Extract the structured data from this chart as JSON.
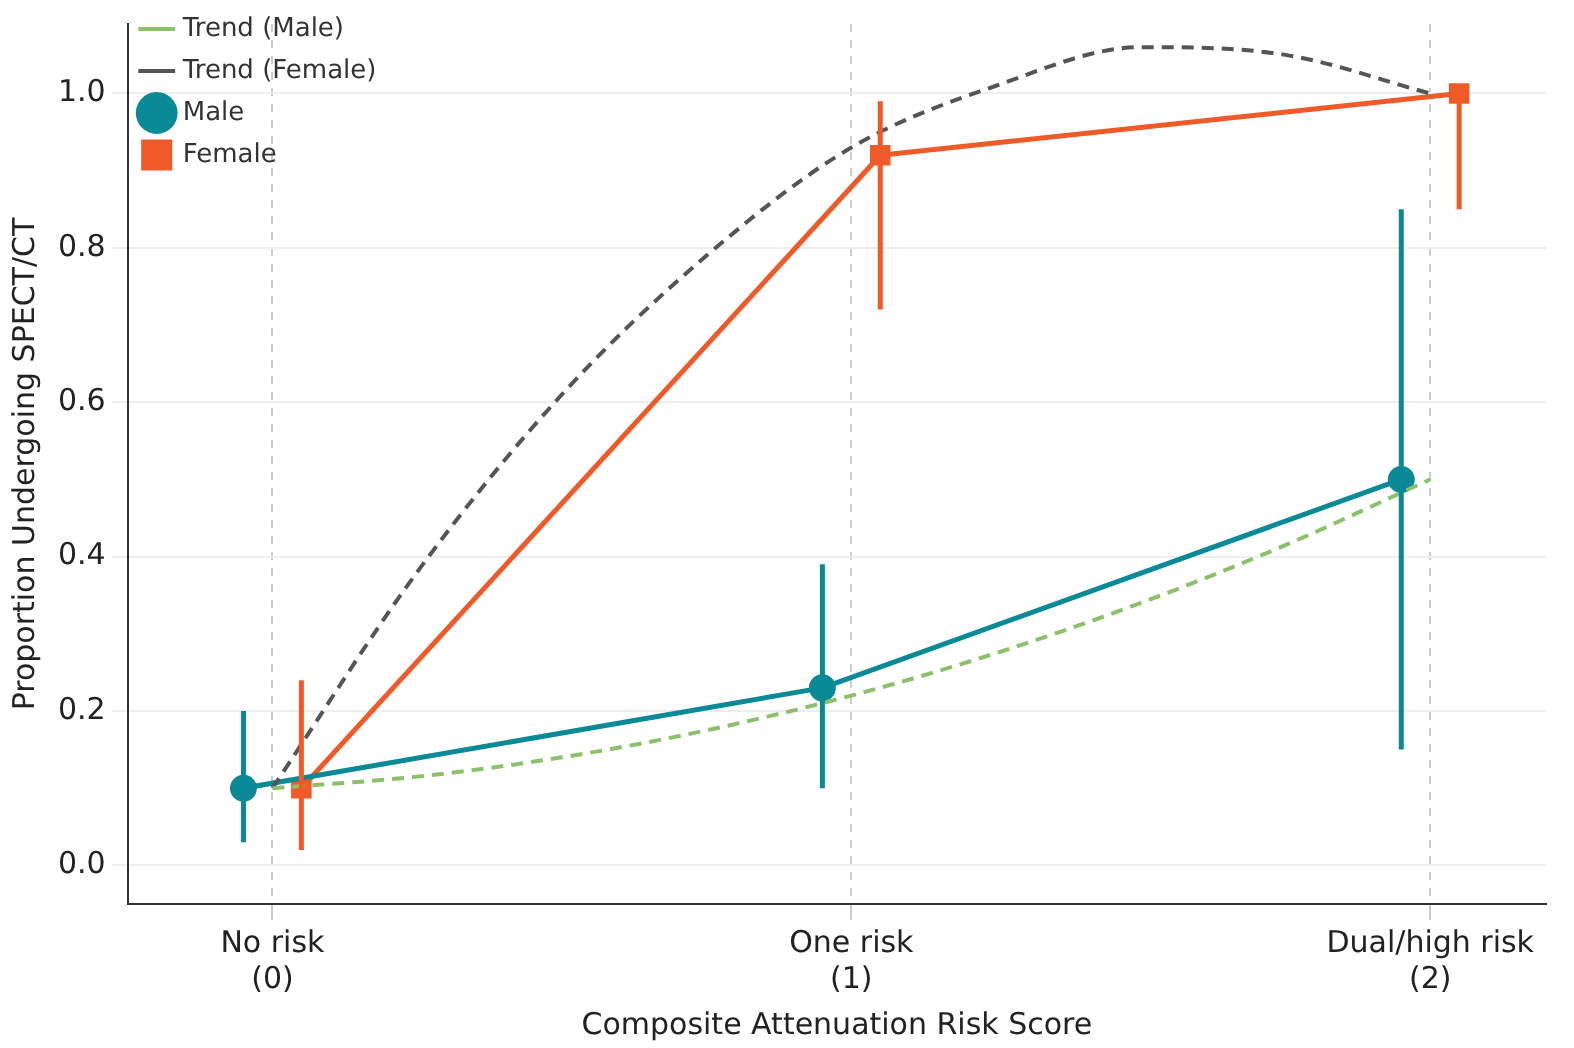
{
  "chart_data": {
    "type": "line",
    "xlabel": "Composite Attenuation Risk Score",
    "ylabel": "Proportion Undergoing SPECT/CT",
    "xlim": [
      -0.25,
      2.2
    ],
    "xticks": [
      {
        "value": 0,
        "label": "No risk\n(0)"
      },
      {
        "value": 1,
        "label": "One risk\n(1)"
      },
      {
        "value": 2,
        "label": "Dual/high risk\n(2)"
      }
    ],
    "ylim": [
      -0.05,
      1.09
    ],
    "yticks": [
      {
        "value": 0,
        "label": "0.0"
      },
      {
        "value": 0.2,
        "label": "0.2"
      },
      {
        "value": 0.4,
        "label": "0.4"
      },
      {
        "value": 0.6,
        "label": "0.6"
      },
      {
        "value": 0.8,
        "label": "0.8"
      },
      {
        "value": 1,
        "label": "1.0"
      }
    ],
    "grid": true,
    "legend": "top left",
    "series": [
      {
        "name": "Trend (Male)",
        "type": "line",
        "color": "#8cc06c",
        "line_style": "dashed",
        "marker": "none",
        "x": [
          0,
          0.25,
          0.5,
          0.75,
          1,
          1.25,
          1.5,
          1.75,
          2
        ],
        "values": [
          0.1,
          0.115,
          0.14,
          0.175,
          0.22,
          0.275,
          0.34,
          0.415,
          0.5
        ]
      },
      {
        "name": "Trend (Female)",
        "type": "line",
        "color": "#555555",
        "line_style": "dashed",
        "marker": "none",
        "x": [
          0,
          0.25,
          0.5,
          0.75,
          1,
          1.25,
          1.5,
          1.75,
          2
        ],
        "values": [
          0.1,
          0.38,
          0.61,
          0.79,
          0.93,
          1.01,
          1.06,
          1.05,
          1.0
        ]
      },
      {
        "name": "Male",
        "type": "line",
        "color": "#0a8a96",
        "line_style": "solid",
        "marker": "circle",
        "x": [
          -0.05,
          0.95,
          1.95
        ],
        "values": [
          0.1,
          0.23,
          0.5
        ],
        "errors": [
          [
            0.03,
            0.2
          ],
          [
            0.1,
            0.39
          ],
          [
            0.15,
            0.85
          ]
        ]
      },
      {
        "name": "Female",
        "type": "line",
        "color": "#f05a28",
        "line_style": "solid",
        "marker": "square",
        "x": [
          0.05,
          1.05,
          2.05
        ],
        "values": [
          0.1,
          0.92,
          1.0
        ],
        "errors": [
          [
            0.02,
            0.24
          ],
          [
            0.72,
            0.99
          ],
          [
            0.85,
            1.0
          ]
        ]
      }
    ]
  }
}
